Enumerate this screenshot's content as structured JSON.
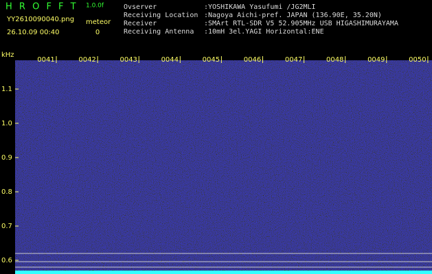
{
  "header": {
    "logo": "H R O F F T",
    "version": "1.0.0f",
    "filename": "YY2610090040.png",
    "datetime": "26.10.09 00:40",
    "meteor_label": "meteor",
    "meteor_count": 0,
    "fields": [
      {
        "label": "Ovserver",
        "value": ":YOSHIKAWA Yasufumi /JG2MLI"
      },
      {
        "label": "Receiving Location",
        "value": ":Nagoya Aichi-pref. JAPAN (136.90E, 35.20N)"
      },
      {
        "label": "Receiver",
        "value": ":SMArt RTL-SDR V5 52.905MHz USB HIGASHIMURAYAMA"
      },
      {
        "label": "Receiving Antenna",
        "value": ":10mH 3el.YAGI Horizontal:ENE"
      }
    ]
  },
  "axis": {
    "unit": "kHz",
    "ylim": [
      0.56,
      1.184
    ],
    "yticks": [
      1.1,
      {
        "value": 1,
        "label": "1.0"
      },
      0.9,
      0.8,
      0.7,
      0.6
    ],
    "time_labels": [
      "0041",
      "0042",
      "0043",
      "0044",
      "0045",
      "0046",
      "0047",
      "0048",
      "0049",
      "0050"
    ]
  }
}
